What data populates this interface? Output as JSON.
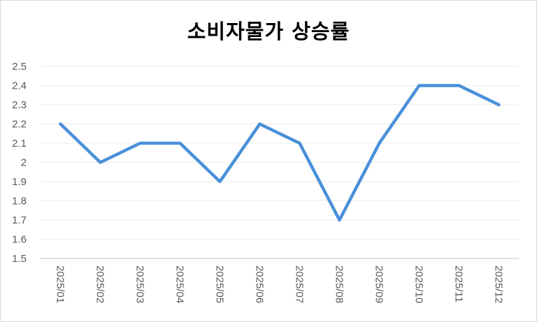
{
  "chart_data": {
    "type": "line",
    "title": "소비자물가 상승률",
    "xlabel": "",
    "ylabel": "",
    "categories": [
      "2025/01",
      "2025/02",
      "2025/03",
      "2025/04",
      "2025/05",
      "2025/06",
      "2025/07",
      "2025/08",
      "2025/09",
      "2025/10",
      "2025/11",
      "2025/12"
    ],
    "series": [
      {
        "name": "소비자물가 상승률",
        "values": [
          2.2,
          2.0,
          2.1,
          2.1,
          1.9,
          2.2,
          2.1,
          1.7,
          2.1,
          2.4,
          2.4,
          2.3
        ],
        "color": "#4a90d9"
      }
    ],
    "ylim": [
      1.5,
      2.5
    ],
    "yticks": [
      "2.5",
      "2.4",
      "2.3",
      "2.2",
      "2.1",
      "2",
      "1.9",
      "1.8",
      "1.7",
      "1.6",
      "1.5"
    ],
    "grid": true,
    "legend": "none"
  }
}
